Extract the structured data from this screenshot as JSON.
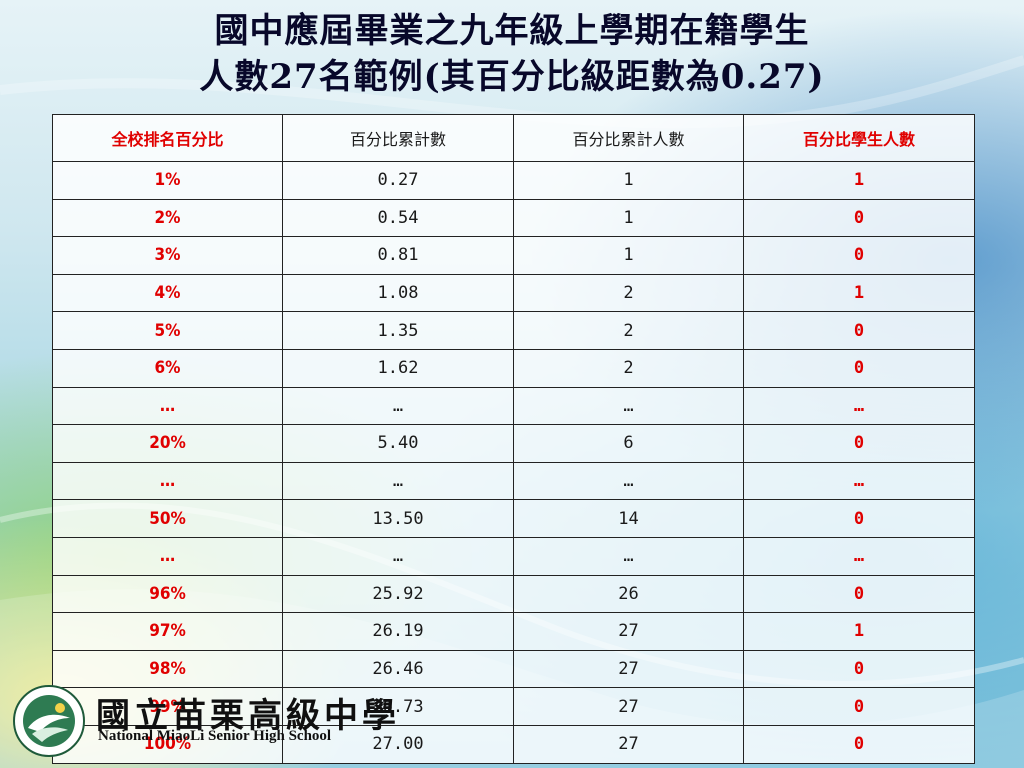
{
  "title": {
    "line1": "國中應屆畢業之九年級上學期在籍學生",
    "line2": "人數27名範例(其百分比級距數為0.27)"
  },
  "table": {
    "headers": [
      "全校排名百分比",
      "百分比累計數",
      "百分比累計人數",
      "百分比學生人數"
    ],
    "rows": [
      [
        "1%",
        "0.27",
        "1",
        "1"
      ],
      [
        "2%",
        "0.54",
        "1",
        "0"
      ],
      [
        "3%",
        "0.81",
        "1",
        "0"
      ],
      [
        "4%",
        "1.08",
        "2",
        "1"
      ],
      [
        "5%",
        "1.35",
        "2",
        "0"
      ],
      [
        "6%",
        "1.62",
        "2",
        "0"
      ],
      [
        "…",
        "…",
        "…",
        "…"
      ],
      [
        "20%",
        "5.40",
        "6",
        "0"
      ],
      [
        "…",
        "…",
        "…",
        "…"
      ],
      [
        "50%",
        "13.50",
        "14",
        "0"
      ],
      [
        "…",
        "…",
        "…",
        "…"
      ],
      [
        "96%",
        "25.92",
        "26",
        "0"
      ],
      [
        "97%",
        "26.19",
        "27",
        "1"
      ],
      [
        "98%",
        "26.46",
        "27",
        "0"
      ],
      [
        "99%",
        "26.73",
        "27",
        "0"
      ],
      [
        "100%",
        "27.00",
        "27",
        "0"
      ]
    ]
  },
  "school": {
    "name_zh": "國立苗栗高級中學",
    "name_en": "National MiaoLi Senior High School",
    "logo_icon": "school-emblem-icon"
  },
  "colors": {
    "accent_red": "#e00000",
    "title": "#08082a"
  }
}
